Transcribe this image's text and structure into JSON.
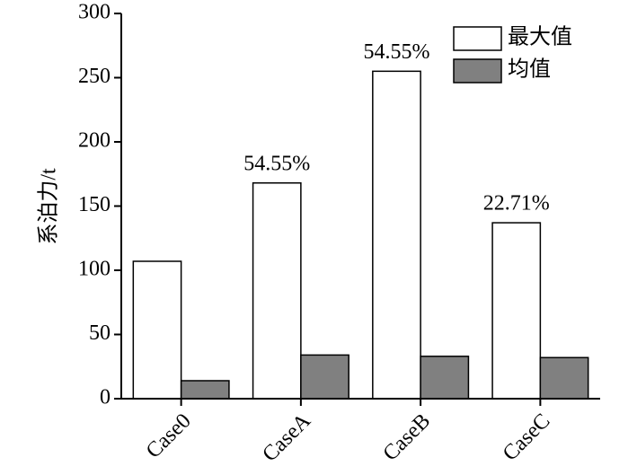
{
  "chart_data": {
    "type": "bar",
    "ylabel": "系泊力/t",
    "categories": [
      "Case0",
      "CaseA",
      "CaseB",
      "CaseC"
    ],
    "series": [
      {
        "name": "最大值",
        "color": "#ffffff",
        "values": [
          107,
          168,
          255,
          137
        ]
      },
      {
        "name": "均值",
        "color": "#808080",
        "values": [
          14,
          34,
          33,
          32
        ]
      }
    ],
    "annotations": [
      null,
      "54.55%",
      "54.55%",
      "22.71%"
    ],
    "ylim": [
      0,
      300
    ],
    "yticks": [
      0,
      50,
      100,
      150,
      200,
      250,
      300
    ],
    "legend": "upper right",
    "grid": false
  }
}
